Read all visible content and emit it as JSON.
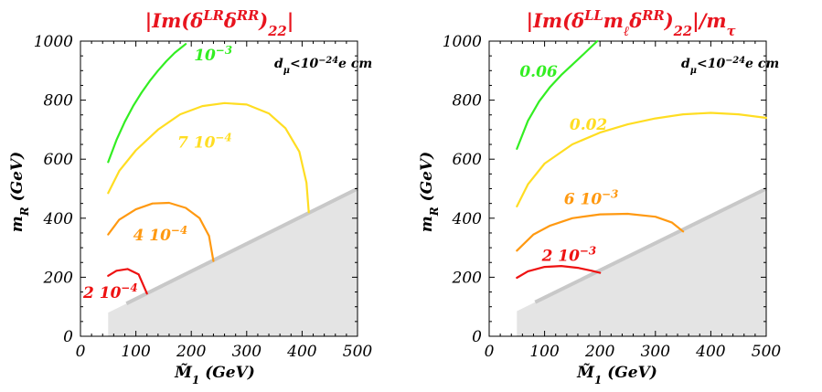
{
  "chart_data": [
    {
      "type": "line",
      "title_parts": [
        "|Im(δ",
        "LR",
        "δ",
        "RR",
        ")",
        "22",
        "|"
      ],
      "xlabel_parts": [
        "M̃",
        "1",
        " (GeV)"
      ],
      "ylabel_parts": [
        "m",
        "R",
        " (GeV)"
      ],
      "constraint_parts": [
        "d",
        "μ",
        "<10",
        "−24",
        "e cm"
      ],
      "xlim": [
        0,
        500
      ],
      "ylim": [
        0,
        1000
      ],
      "xticks": [
        "0",
        "100",
        "200",
        "300",
        "400",
        "500"
      ],
      "yticks": [
        "0",
        "200",
        "400",
        "600",
        "800",
        "1000"
      ],
      "excluded_region": {
        "color": "#e4e4e4",
        "edge_color": "#c8c8c8",
        "x": [
          50,
          500
        ],
        "y": [
          80,
          500
        ]
      },
      "series": [
        {
          "label_parts": [
            "10",
            "−3"
          ],
          "color": "#33ee22",
          "label_at": [
            205,
            935
          ],
          "x": [
            50,
            65,
            80,
            95,
            110,
            125,
            140,
            155,
            170,
            190
          ],
          "y": [
            590,
            665,
            727,
            780,
            825,
            865,
            900,
            932,
            960,
            990
          ]
        },
        {
          "label_parts": [
            "7 10",
            "−4"
          ],
          "color": "#ffdd22",
          "label_at": [
            175,
            640
          ],
          "x": [
            50,
            70,
            100,
            140,
            180,
            220,
            260,
            300,
            340,
            370,
            395,
            408,
            412
          ],
          "y": [
            485,
            560,
            630,
            700,
            752,
            780,
            790,
            785,
            755,
            705,
            625,
            520,
            420
          ]
        },
        {
          "label_parts": [
            "4 10",
            "−4"
          ],
          "color": "#ff9911",
          "label_at": [
            95,
            325
          ],
          "x": [
            50,
            70,
            100,
            130,
            160,
            190,
            215,
            232,
            240
          ],
          "y": [
            345,
            395,
            430,
            450,
            452,
            435,
            400,
            340,
            255
          ]
        },
        {
          "label_parts": [
            "2 10",
            "−4"
          ],
          "color": "#ee1111",
          "label_at": [
            5,
            130
          ],
          "x": [
            50,
            65,
            85,
            105,
            120
          ],
          "y": [
            205,
            222,
            228,
            210,
            145
          ]
        }
      ]
    },
    {
      "type": "line",
      "title_parts": [
        "|Im(δ",
        "LL",
        "m",
        "ℓ",
        "δ",
        "RR",
        ")",
        "22",
        "|/m",
        "τ"
      ],
      "xlabel_parts": [
        "M̃",
        "1",
        " (GeV)"
      ],
      "ylabel_parts": [
        "m",
        "R",
        " (GeV)"
      ],
      "constraint_parts": [
        "d",
        "μ",
        "<10",
        "−24",
        "e cm"
      ],
      "xlim": [
        0,
        500
      ],
      "ylim": [
        0,
        1000
      ],
      "xticks": [
        "0",
        "100",
        "200",
        "300",
        "400",
        "500"
      ],
      "yticks": [
        "0",
        "200",
        "400",
        "600",
        "800",
        "1000"
      ],
      "excluded_region": {
        "color": "#e4e4e4",
        "edge_color": "#c8c8c8",
        "x": [
          50,
          500
        ],
        "y": [
          85,
          500
        ]
      },
      "series": [
        {
          "label_parts": [
            "0.06"
          ],
          "color": "#33ee22",
          "label_at": [
            55,
            880
          ],
          "x": [
            50,
            70,
            90,
            110,
            130,
            150,
            170,
            195
          ],
          "y": [
            635,
            730,
            795,
            845,
            885,
            920,
            955,
            1000
          ]
        },
        {
          "label_parts": [
            "0.02"
          ],
          "color": "#ffdd22",
          "label_at": [
            145,
            700
          ],
          "x": [
            50,
            70,
            100,
            150,
            200,
            250,
            300,
            350,
            400,
            450,
            500
          ],
          "y": [
            440,
            515,
            585,
            650,
            690,
            718,
            738,
            752,
            757,
            752,
            740
          ]
        },
        {
          "label_parts": [
            "6 10",
            "−3"
          ],
          "color": "#ff9911",
          "label_at": [
            135,
            448
          ],
          "x": [
            50,
            80,
            110,
            150,
            200,
            250,
            300,
            330,
            350
          ],
          "y": [
            290,
            345,
            375,
            400,
            413,
            415,
            405,
            385,
            355
          ]
        },
        {
          "label_parts": [
            "2 10",
            "−3"
          ],
          "color": "#ee1111",
          "label_at": [
            95,
            255
          ],
          "x": [
            50,
            70,
            100,
            130,
            160,
            185,
            200
          ],
          "y": [
            198,
            220,
            235,
            238,
            232,
            222,
            215
          ]
        }
      ]
    }
  ]
}
